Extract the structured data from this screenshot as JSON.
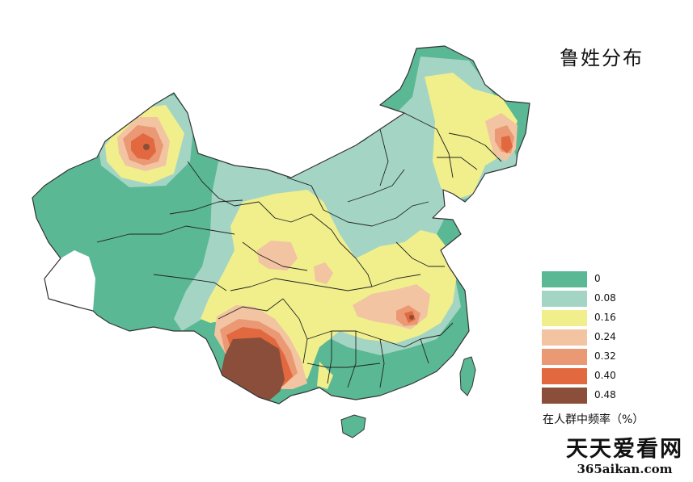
{
  "map": {
    "title": "鲁姓分布",
    "legend": [
      {
        "label": "0",
        "color": "#5ab894"
      },
      {
        "label": "0.08",
        "color": "#a4d5c4"
      },
      {
        "label": "0.16",
        "color": "#f0ef8c"
      },
      {
        "label": "0.24",
        "color": "#f2c4a2"
      },
      {
        "label": "0.32",
        "color": "#eb9874"
      },
      {
        "label": "0.40",
        "color": "#e2693f"
      },
      {
        "label": "0.48",
        "color": "#8b4e3a"
      }
    ],
    "legend_caption": "在人群中频率（%）",
    "no_data_color": "#ffffff"
  },
  "watermark": {
    "name": "天天爱看网",
    "url": "365aikan.com"
  }
}
